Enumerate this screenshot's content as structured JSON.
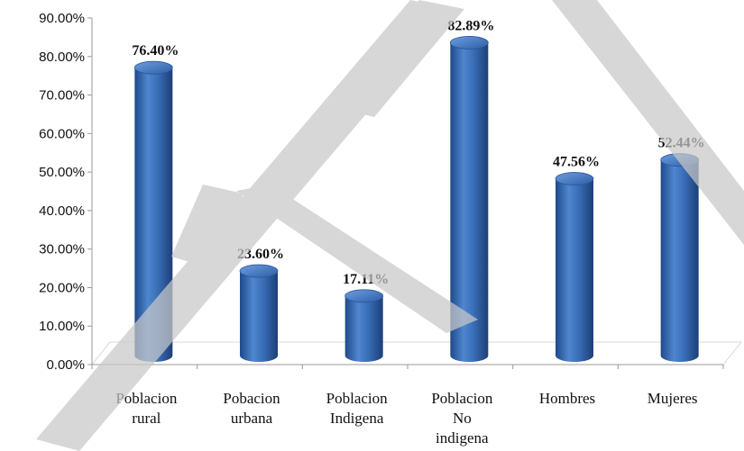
{
  "chart_data": {
    "type": "bar",
    "categories": [
      [
        "Poblacion",
        "rural"
      ],
      [
        "Pobacion",
        "urbana"
      ],
      [
        "Poblacion",
        "Indigena"
      ],
      [
        "Poblacion",
        "No",
        "indigena"
      ],
      [
        "Hombres"
      ],
      [
        "Mujeres"
      ]
    ],
    "values": [
      76.4,
      23.6,
      17.11,
      82.89,
      47.56,
      52.44
    ],
    "data_labels": [
      "76.40%",
      "23.60%",
      "17.11%",
      "82.89%",
      "47.56%",
      "52.44%"
    ],
    "y_ticks": [
      "0.00%",
      "10.00%",
      "20.00%",
      "30.00%",
      "40.00%",
      "50.00%",
      "60.00%",
      "70.00%",
      "80.00%",
      "90.00%"
    ],
    "ylim": [
      0,
      90
    ],
    "grid": false,
    "legend": "none",
    "style": "3d-cylinder",
    "bar_color": "#3a6fb8",
    "watermark_color": "#c8c8c8"
  }
}
